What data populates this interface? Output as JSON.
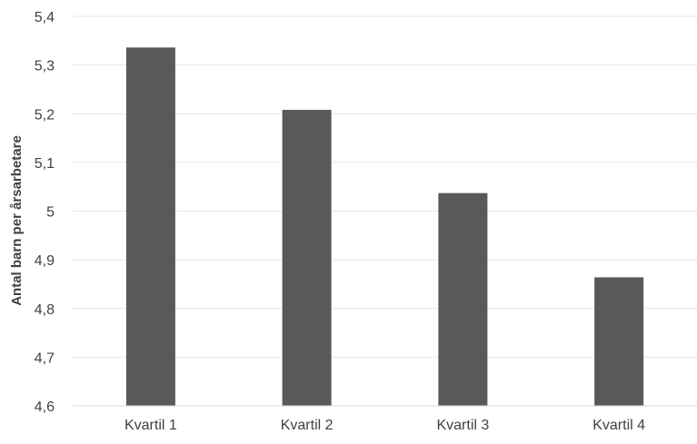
{
  "chart_data": {
    "type": "bar",
    "title": "",
    "xlabel": "",
    "ylabel": "Antal barn per årsarbetare",
    "categories": [
      "Kvartil 1",
      "Kvartil 2",
      "Kvartil 3",
      "Kvartil 4"
    ],
    "values": [
      5.336,
      5.208,
      5.037,
      4.864
    ],
    "ylim": [
      4.6,
      5.4
    ],
    "yticks": [
      4.6,
      4.7,
      4.8,
      4.9,
      5.0,
      5.1,
      5.2,
      5.3,
      5.4
    ],
    "ytick_labels": [
      "4,6",
      "4,7",
      "4,8",
      "4,9",
      "5",
      "5,1",
      "5,2",
      "5,3",
      "5,4"
    ],
    "grid": true,
    "legend": "none",
    "colors": {
      "bar": "#595959",
      "grid": "#e6e6e6",
      "axis": "#d9d9d9",
      "text": "#404040"
    }
  }
}
